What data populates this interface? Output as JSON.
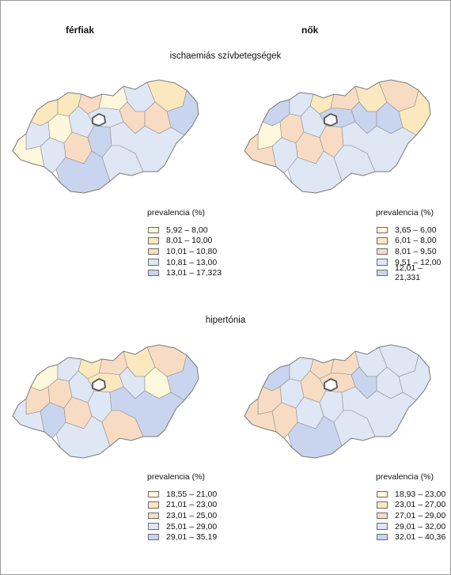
{
  "columns": {
    "men": "férfiak",
    "women": "nők"
  },
  "sections": [
    {
      "title": "ischaemiás szívbetegségek",
      "maps": [
        {
          "legend_title": "prevalencia (%)",
          "classes": [
            {
              "label": "5,92 – 8,00",
              "color": "#fdf7dc"
            },
            {
              "label": "8,01 – 10,00",
              "color": "#fbe8bf"
            },
            {
              "label": "10,01 – 10,80",
              "color": "#f7dcc3"
            },
            {
              "label": "10,81 – 13,00",
              "color": "#dfe6f4"
            },
            {
              "label": "13,01 – 17,323",
              "color": "#c9d5ee"
            }
          ]
        },
        {
          "legend_title": "prevalencia (%)",
          "classes": [
            {
              "label": "3,65 – 6,00",
              "color": "#fdf7dc"
            },
            {
              "label": "6,01 – 8,00",
              "color": "#fbe8bf"
            },
            {
              "label": "8,01 – 9,50",
              "color": "#f7dcc3"
            },
            {
              "label": "9,51 – 12,00",
              "color": "#dfe6f4"
            },
            {
              "label": "12,01 – 21,331",
              "color": "#c9d5ee"
            }
          ]
        }
      ]
    },
    {
      "title": "hipertónia",
      "maps": [
        {
          "legend_title": "prevalencia (%)",
          "classes": [
            {
              "label": "18,55 – 21,00",
              "color": "#fdf7dc"
            },
            {
              "label": "21,01 – 23,00",
              "color": "#fbe8bf"
            },
            {
              "label": "23,01 – 25,00",
              "color": "#f7dcc3"
            },
            {
              "label": "25,01 – 29,00",
              "color": "#dfe6f4"
            },
            {
              "label": "29,01 – 35,19",
              "color": "#c9d5ee"
            }
          ]
        },
        {
          "legend_title": "prevalencia (%)",
          "classes": [
            {
              "label": "18,93 – 23,00",
              "color": "#fdf7dc"
            },
            {
              "label": "23,01 – 27,00",
              "color": "#fbe8bf"
            },
            {
              "label": "27,01 – 29,00",
              "color": "#f7dcc3"
            },
            {
              "label": "29,01 – 32,00",
              "color": "#dfe6f4"
            },
            {
              "label": "32,01 – 40,36",
              "color": "#c9d5ee"
            }
          ]
        }
      ]
    }
  ],
  "county_classes": [
    [
      [
        2,
        2,
        3,
        1,
        4,
        2,
        5,
        4,
        1,
        4,
        4,
        3,
        3,
        1,
        4,
        3,
        5,
        4,
        5,
        4
      ],
      [
        5,
        4,
        2,
        3,
        2,
        3,
        2,
        1,
        3,
        4,
        5,
        5,
        5,
        3,
        4,
        3,
        3,
        4,
        4,
        4
      ]
    ],
    [
      [
        1,
        4,
        2,
        3,
        2,
        3,
        5,
        3,
        3,
        4,
        2,
        4,
        1,
        4,
        5,
        3,
        4,
        5,
        4,
        3
      ],
      [
        5,
        4,
        3,
        3,
        4,
        4,
        4,
        3,
        4,
        3,
        3,
        5,
        4,
        3,
        3,
        4,
        4,
        4,
        5,
        4
      ]
    ]
  ]
}
